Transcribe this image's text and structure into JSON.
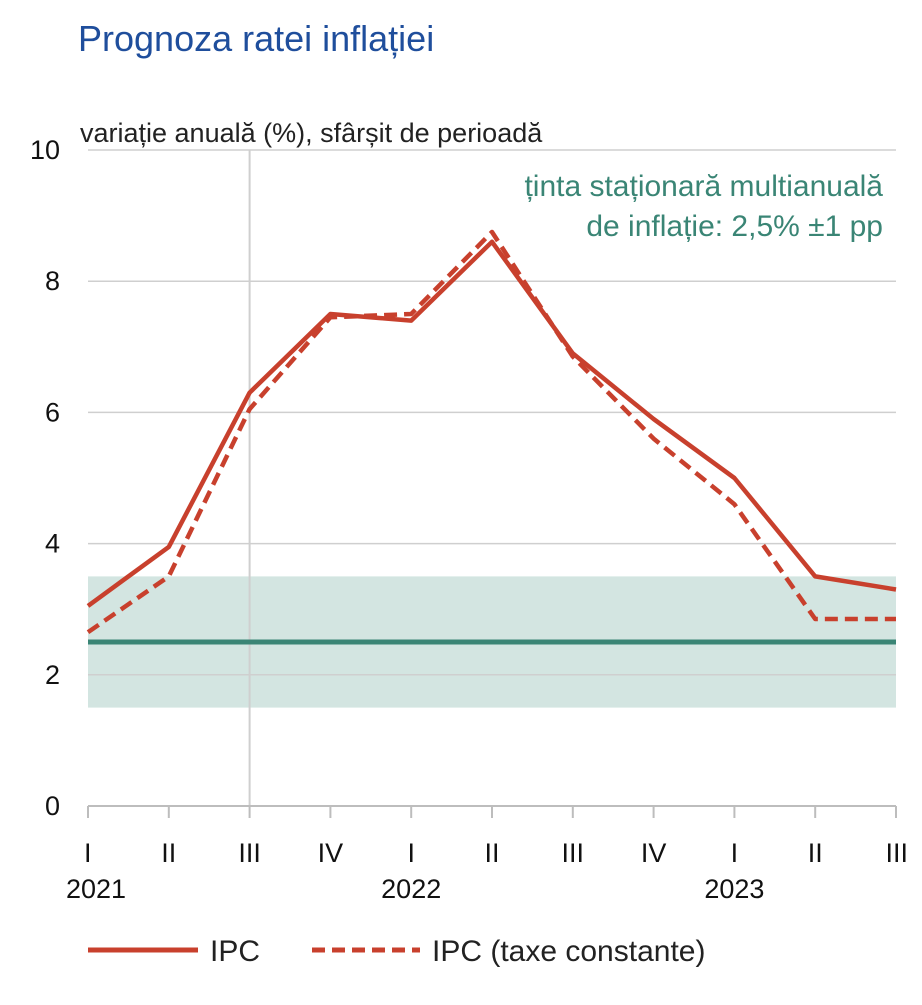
{
  "title": "Prognoza ratei inflației",
  "chart_data": {
    "type": "line",
    "title": "Prognoza ratei inflației",
    "ylabel": "variație anuală (%), sfârșit de perioadă",
    "xlabel": "",
    "ylim": [
      0,
      10
    ],
    "yticks": [
      0,
      2,
      4,
      6,
      8,
      10
    ],
    "categories": [
      "I",
      "II",
      "III",
      "IV",
      "I",
      "II",
      "III",
      "IV",
      "I",
      "II",
      "III"
    ],
    "year_labels": [
      {
        "label": "2021",
        "index": 0
      },
      {
        "label": "2022",
        "index": 4
      },
      {
        "label": "2023",
        "index": 8
      }
    ],
    "series": [
      {
        "name": "IPC",
        "style": "solid",
        "color": "#c8402d",
        "values": [
          3.05,
          3.95,
          6.3,
          7.5,
          7.4,
          8.6,
          6.9,
          5.9,
          5.0,
          3.5,
          3.3
        ]
      },
      {
        "name": "IPC (taxe constante)",
        "style": "dashed",
        "color": "#c8402d",
        "values": [
          2.65,
          3.5,
          6.05,
          7.45,
          7.5,
          8.75,
          6.85,
          5.6,
          4.6,
          2.85,
          2.85
        ]
      }
    ],
    "target": {
      "label_line1": "ținta staționară multianuală",
      "label_line2": "de inflație: 2,5% ±1 pp",
      "value": 2.5,
      "band": [
        1.5,
        3.5
      ],
      "line_color": "#3a8575",
      "band_color": "#d3e5e1"
    },
    "grid": true,
    "legend_position": "bottom-left"
  }
}
